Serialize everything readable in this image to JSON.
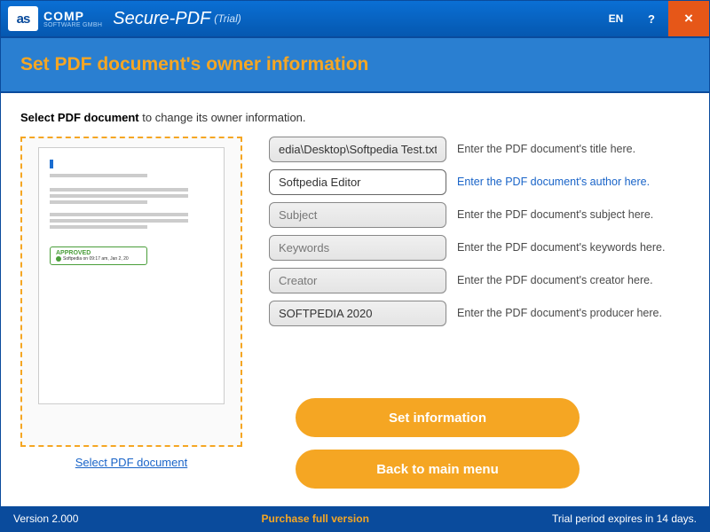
{
  "titlebar": {
    "logo_badge": "as",
    "logo_comp": "COMP",
    "logo_sub": "SOFTWARE GMBH",
    "app_name": "Secure-PDF",
    "app_trial": "(Trial)",
    "lang": "EN",
    "help": "?",
    "close": "×"
  },
  "header": {
    "title": "Set PDF document's owner information"
  },
  "instruction": {
    "bold": "Select PDF document",
    "rest": " to change its owner information."
  },
  "preview": {
    "stamp_title": "APPROVED",
    "stamp_sub": "Softpedia on 09:17 am, Jan 2, 20",
    "select_link": "Select PDF document"
  },
  "fields": [
    {
      "value": "edia\\Desktop\\Softpedia Test.txt",
      "placeholder": "",
      "hint": "Enter the PDF document's title here.",
      "active": false,
      "focused": false
    },
    {
      "value": "Softpedia Editor",
      "placeholder": "",
      "hint": "Enter the PDF document's author here.",
      "active": true,
      "focused": true
    },
    {
      "value": "",
      "placeholder": "Subject",
      "hint": "Enter the PDF document's subject here.",
      "active": false,
      "focused": false
    },
    {
      "value": "",
      "placeholder": "Keywords",
      "hint": "Enter the PDF document's keywords here.",
      "active": false,
      "focused": false
    },
    {
      "value": "",
      "placeholder": "Creator",
      "hint": "Enter the PDF document's creator here.",
      "active": false,
      "focused": false
    },
    {
      "value": "SOFTPEDIA 2020",
      "placeholder": "",
      "hint": "Enter the PDF document's producer here.",
      "active": false,
      "focused": false
    }
  ],
  "buttons": {
    "set": "Set information",
    "back": "Back to main menu"
  },
  "footer": {
    "version": "Version 2.000",
    "purchase": "Purchase full version",
    "trial": "Trial period expires in 14 days."
  },
  "colors": {
    "titlebar_top": "#0a6fd4",
    "titlebar_bottom": "#0558b0",
    "header_bg": "#2a7fd1",
    "accent": "#f5a623",
    "footer_bg": "#0a4b9c",
    "close_bg": "#e65718",
    "link": "#1964c8"
  }
}
